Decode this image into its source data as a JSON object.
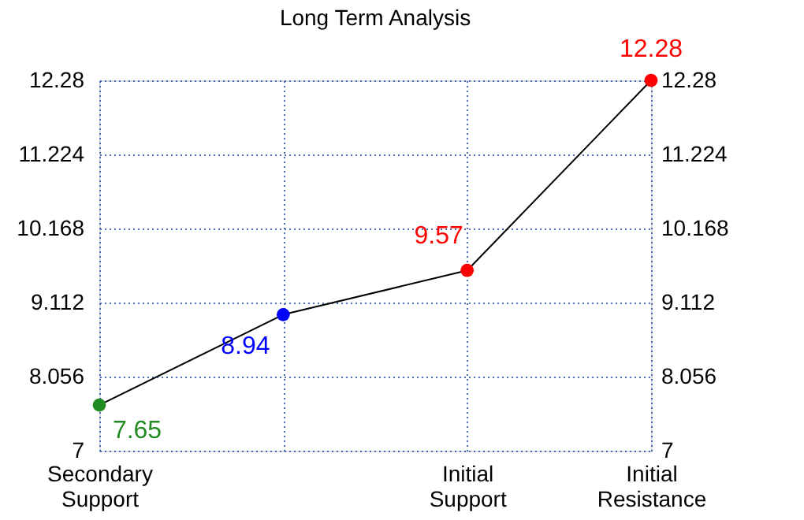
{
  "chart_data": {
    "type": "line",
    "title": "Long Term Analysis",
    "categories": [
      "Secondary Support",
      null,
      "Initial Support",
      "Initial Resistance"
    ],
    "series": [
      {
        "color": "#000000",
        "values": [
          7.65,
          8.94,
          9.57,
          12.28
        ],
        "colors": [
          "#228b22",
          "#0000ff",
          "#ff0000",
          "#ff0000"
        ]
      }
    ],
    "ylim": [
      7,
      12.28
    ],
    "yticks": [
      7,
      8.056,
      9.112,
      10.168,
      11.224,
      12.28
    ],
    "y2lim": [
      7,
      12.28
    ],
    "y2ticks": [
      7,
      8.056,
      9.112,
      10.168,
      11.224,
      12.28
    ],
    "data_labels": true,
    "grid": true,
    "marker": "circle",
    "line_style": "solid"
  }
}
